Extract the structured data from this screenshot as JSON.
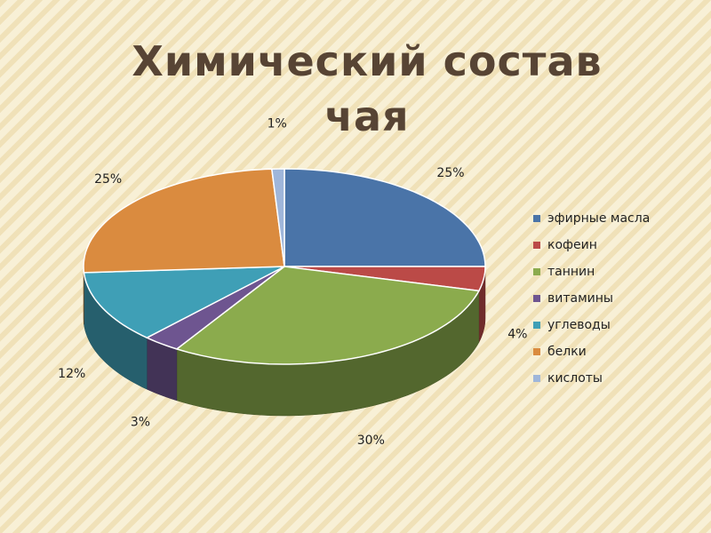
{
  "chart_data": {
    "type": "pie3d",
    "title": "Химический состав чая",
    "categories": [
      "эфирные масла",
      "кофеин",
      "таннин",
      "витамины",
      "углеводы",
      "белки",
      "кислоты"
    ],
    "values": [
      25,
      4,
      30,
      3,
      12,
      25,
      1
    ],
    "value_labels": [
      "25%",
      "4%",
      "30%",
      "3%",
      "12%",
      "25%",
      "1%"
    ],
    "colors": [
      "#4a74a8",
      "#bb4a47",
      "#8bab4d",
      "#6e5590",
      "#3f9fb6",
      "#da8b3f",
      "#9fb6da"
    ],
    "legend": "right"
  }
}
